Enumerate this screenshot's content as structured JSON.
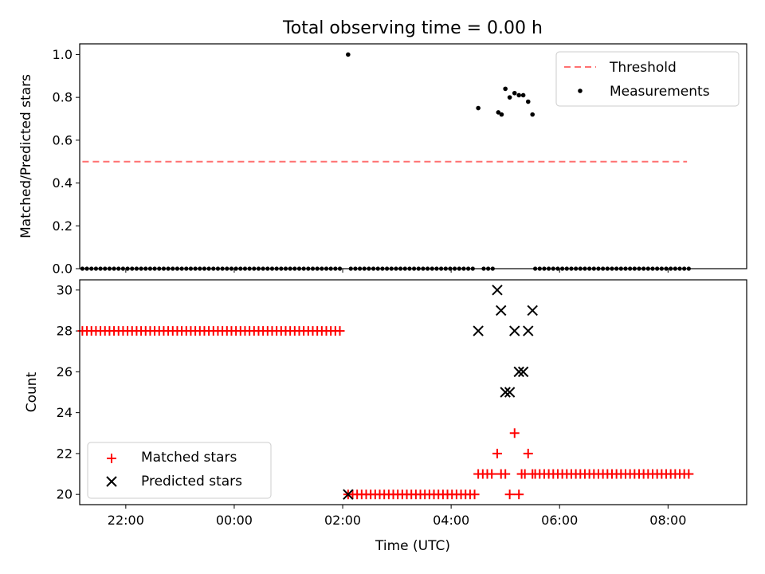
{
  "chart_data": [
    {
      "type": "scatter",
      "title": "Total observing time = 0.00 h",
      "xlabel": "",
      "ylabel": "Matched/Predicted stars",
      "xlim_hours": [
        -2.85,
        9.45
      ],
      "ylim": [
        0.0,
        1.05
      ],
      "yticks": [
        0.0,
        0.2,
        0.4,
        0.6,
        0.8,
        1.0
      ],
      "ytick_labels": [
        "0.0",
        "0.2",
        "0.4",
        "0.6",
        "0.8",
        "1.0"
      ],
      "legend": {
        "placement": "top-right",
        "entries": [
          "Threshold",
          "Measurements"
        ]
      },
      "series": [
        {
          "name": "Threshold",
          "kind": "dashed-line",
          "color": "#ff7070",
          "x_range": [
            -2.8,
            8.35
          ],
          "value": 0.5
        },
        {
          "name": "Measurements",
          "kind": "points",
          "color": "#000000",
          "zero_segments": [
            [
              -2.8,
              2.0
            ],
            [
              2.15,
              4.45
            ],
            [
              4.6,
              4.8
            ],
            [
              5.55,
              8.45
            ]
          ],
          "zero_step": 0.0833,
          "points": [
            [
              2.1,
              1.0
            ],
            [
              4.5,
              0.75
            ],
            [
              4.87,
              0.73
            ],
            [
              4.93,
              0.72
            ],
            [
              5.0,
              0.84
            ],
            [
              5.08,
              0.8
            ],
            [
              5.17,
              0.82
            ],
            [
              5.25,
              0.81
            ],
            [
              5.33,
              0.81
            ],
            [
              5.42,
              0.78
            ],
            [
              5.5,
              0.72
            ]
          ]
        }
      ]
    },
    {
      "type": "scatter",
      "xlabel": "Time (UTC)",
      "ylabel": "Count",
      "xlim_hours": [
        -2.85,
        9.45
      ],
      "ylim": [
        19.5,
        30.5
      ],
      "yticks": [
        20,
        22,
        24,
        26,
        28,
        30
      ],
      "ytick_labels": [
        "20",
        "22",
        "24",
        "26",
        "28",
        "30"
      ],
      "xticks_hours": [
        -2,
        0,
        2,
        4,
        6,
        8
      ],
      "xtick_labels": [
        "22:00",
        "00:00",
        "02:00",
        "04:00",
        "06:00",
        "08:00"
      ],
      "legend": {
        "placement": "bottom-left",
        "entries": [
          "Matched stars",
          "Predicted stars"
        ]
      },
      "series": [
        {
          "name": "Matched stars",
          "marker": "+",
          "color": "#ff0000",
          "segments": [
            {
              "range": [
                -2.8,
                2.0
              ],
              "step": 0.0833,
              "value": 28
            },
            {
              "range": [
                2.1,
                4.45
              ],
              "step": 0.0833,
              "value": 20
            },
            {
              "range": [
                4.5,
                4.8
              ],
              "step": 0.0833,
              "value": 21
            },
            {
              "range": [
                5.55,
                8.45
              ],
              "step": 0.0833,
              "value": 21
            }
          ],
          "points": [
            [
              4.85,
              22
            ],
            [
              4.92,
              21
            ],
            [
              5.0,
              21
            ],
            [
              5.08,
              20
            ],
            [
              5.17,
              23
            ],
            [
              5.25,
              20
            ],
            [
              5.3,
              21
            ],
            [
              5.36,
              21
            ],
            [
              5.42,
              22
            ],
            [
              5.5,
              21
            ]
          ]
        },
        {
          "name": "Predicted stars",
          "marker": "x",
          "color": "#000000",
          "points": [
            [
              2.1,
              20
            ],
            [
              4.5,
              28
            ],
            [
              4.85,
              30
            ],
            [
              4.92,
              29
            ],
            [
              5.0,
              25
            ],
            [
              5.08,
              25
            ],
            [
              5.17,
              28
            ],
            [
              5.25,
              26
            ],
            [
              5.33,
              26
            ],
            [
              5.42,
              28
            ],
            [
              5.5,
              29
            ]
          ]
        }
      ]
    }
  ]
}
